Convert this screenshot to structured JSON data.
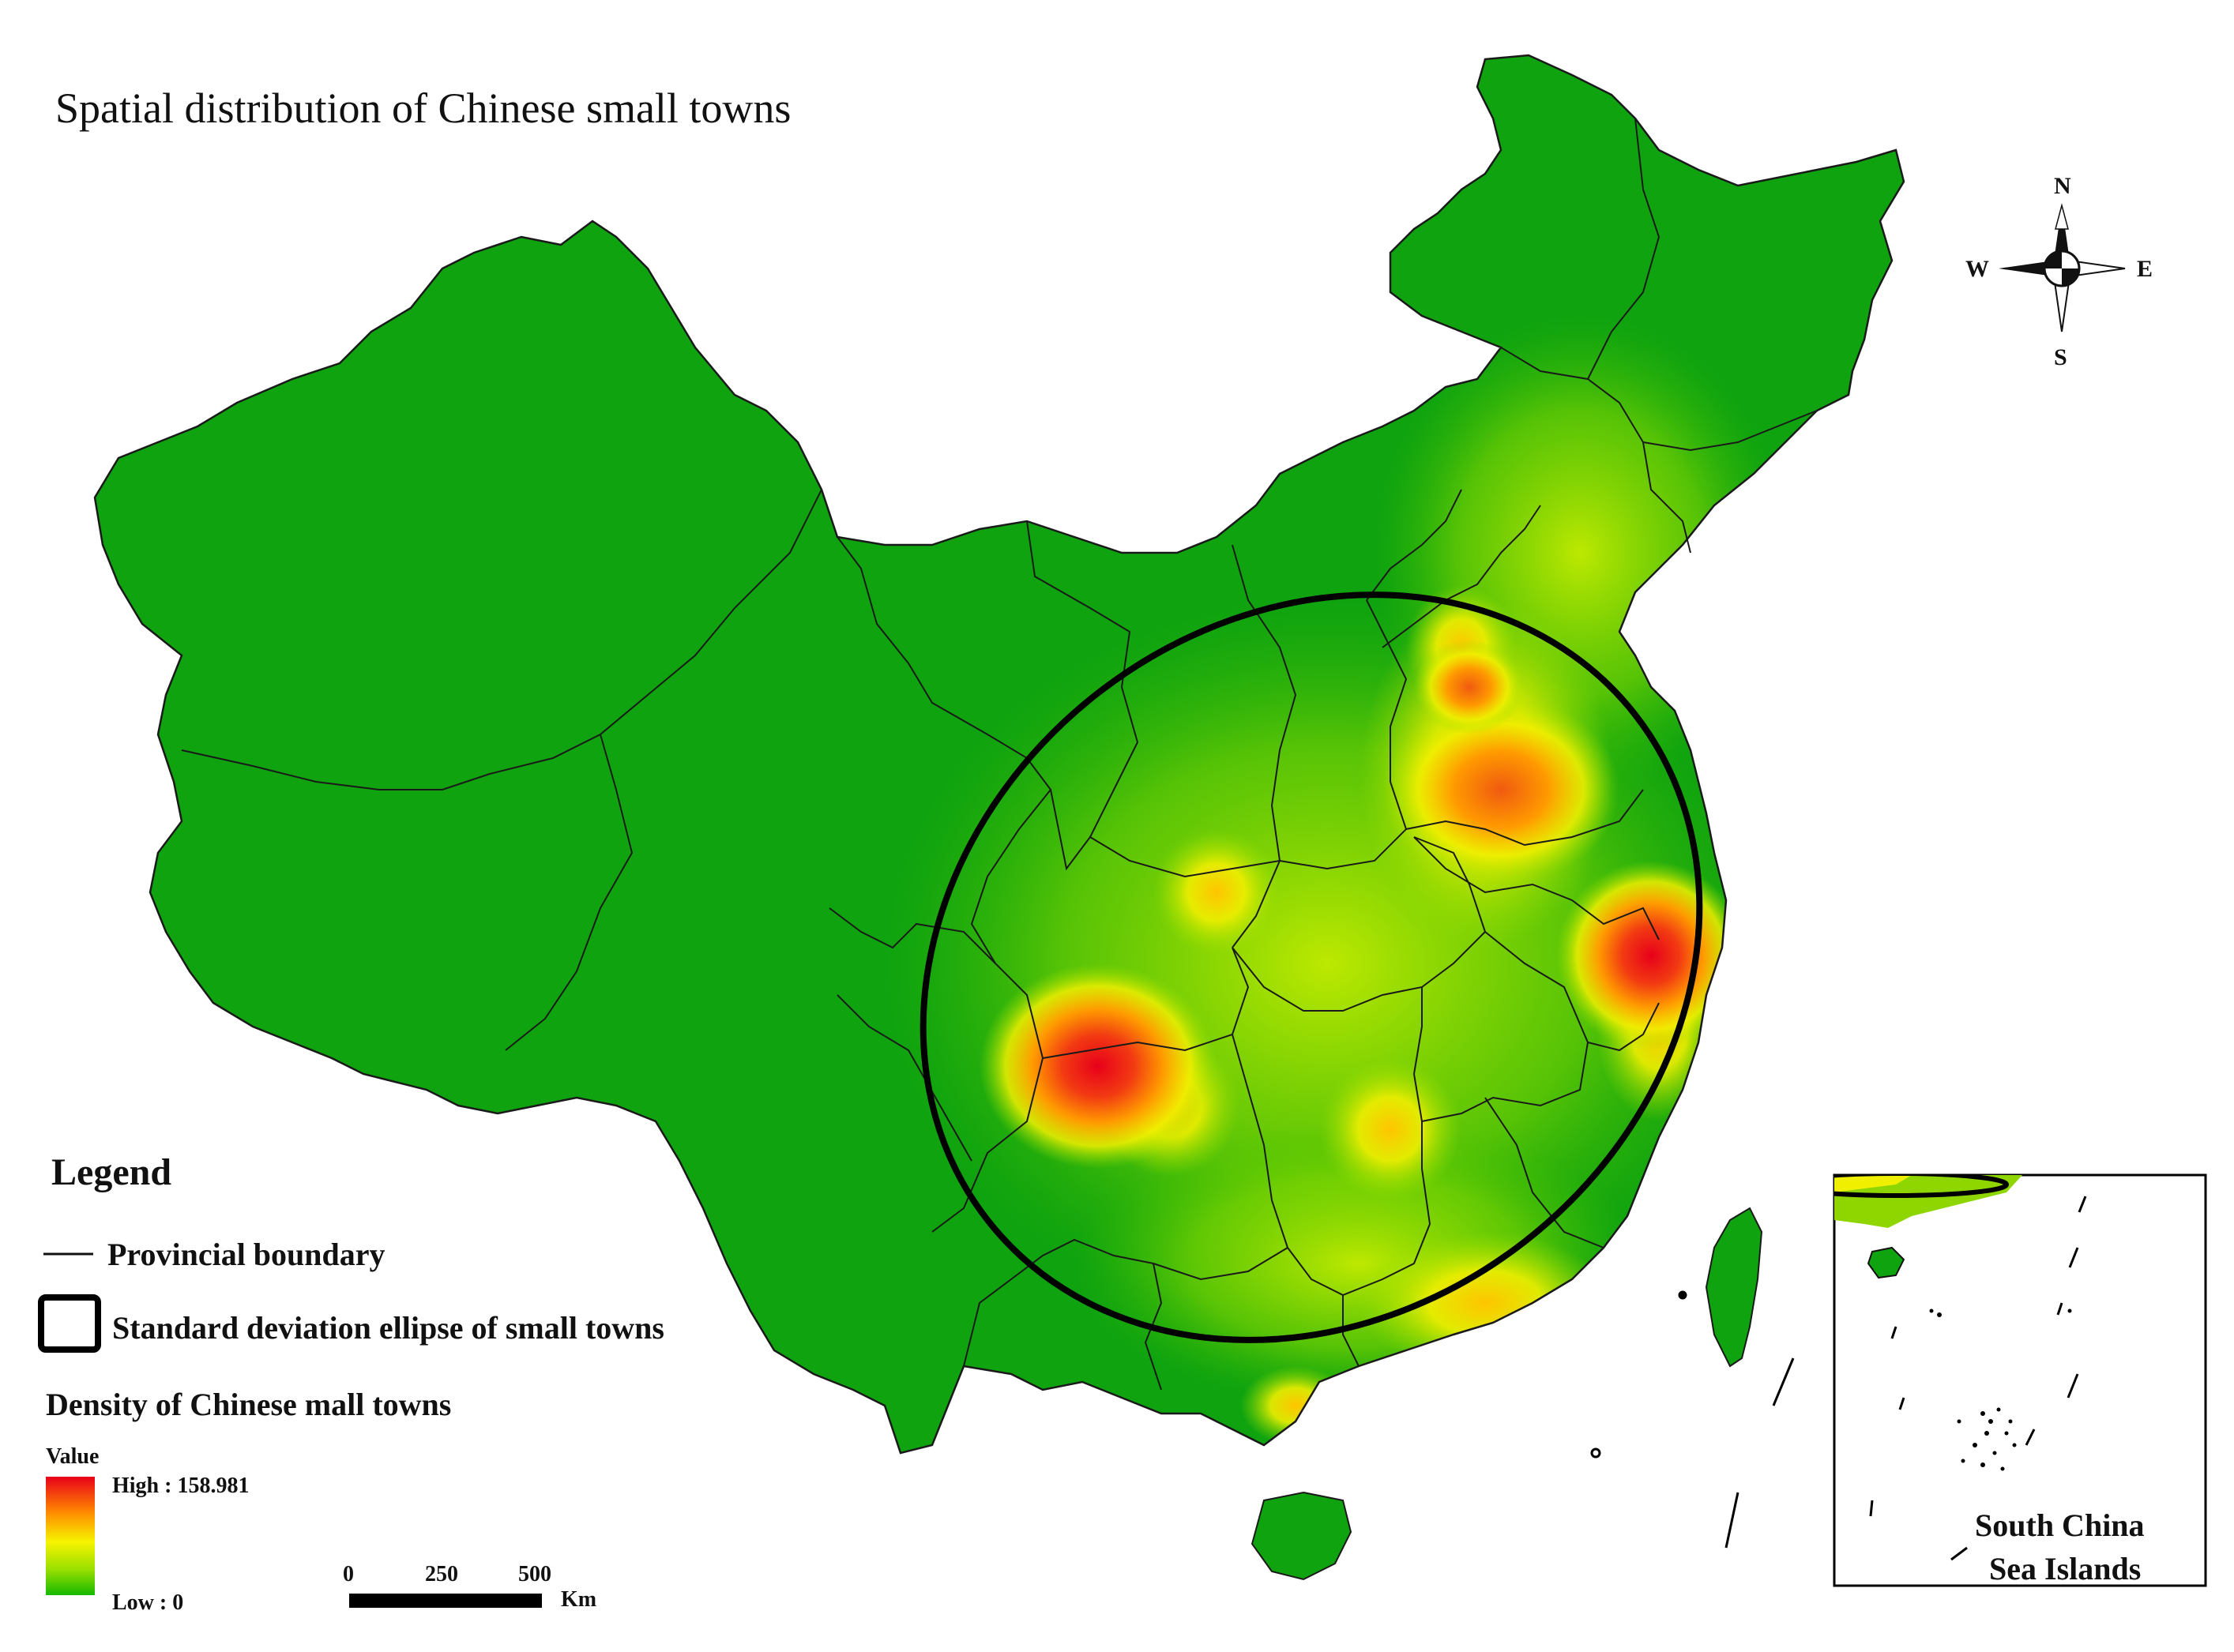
{
  "title": "Spatial distribution of Chinese small towns",
  "legend": {
    "heading": "Legend",
    "boundary_label": "Provincial boundary",
    "ellipse_label": "Standard deviation ellipse of small towns",
    "density_title": "Density of Chinese mall towns",
    "value_label": "Value",
    "high_label": "High : 158.981",
    "low_label": "Low : 0",
    "ramp_colors": [
      "#e8001a",
      "#ff8a00",
      "#f7f400",
      "#9ae000",
      "#16b900"
    ]
  },
  "scale_bar": {
    "ticks": [
      "0",
      "250",
      "500"
    ],
    "unit": "Km"
  },
  "compass": {
    "north": "N",
    "south": "S",
    "east": "E",
    "west": "W"
  },
  "inset": {
    "label_line1": "South China",
    "label_line2": "Sea Islands"
  },
  "density": {
    "max_value": 158.981,
    "min_value": 0,
    "hotspots": [
      {
        "name": "Sichuan Basin (Chongqing)",
        "level": "high"
      },
      {
        "name": "Shanghai / southern Jiangsu",
        "level": "high"
      },
      {
        "name": "Shandong / northern Jiangsu",
        "level": "high"
      },
      {
        "name": "Hebei / Beijing",
        "level": "medium-high"
      },
      {
        "name": "Hunan",
        "level": "medium"
      },
      {
        "name": "Pearl River Delta",
        "level": "medium"
      }
    ]
  },
  "colors": {
    "base_green": "#0fa30f",
    "boundary": "#1a1a1a",
    "ellipse": "#000000"
  }
}
